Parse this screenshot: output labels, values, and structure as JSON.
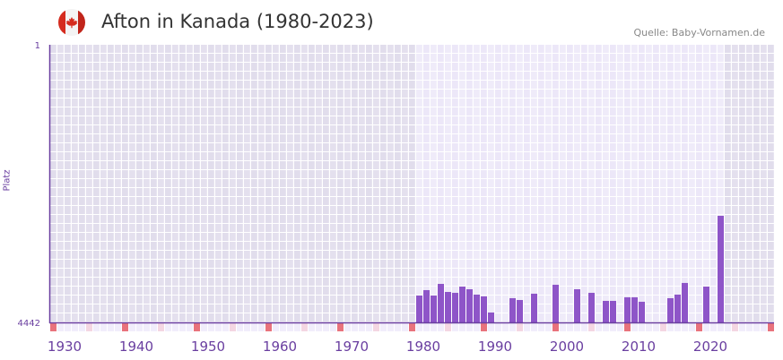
{
  "header": {
    "title": "Afton in Kanada (1980-2023)",
    "flag_icon": "canada-flag-icon",
    "source": "Quelle: Baby-Vornamen.de"
  },
  "colors": {
    "bar": "#8e55c8",
    "axis": "#6a3fa0",
    "decade_marker": "#e8727c",
    "half_decade_marker": "#f4d6e2"
  },
  "chart_data": {
    "type": "bar",
    "title": "Afton in Kanada (1980-2023)",
    "xlabel": "",
    "ylabel": "Platz",
    "y_inverted": true,
    "ylim": [
      1,
      4442
    ],
    "y_tick_labels": [
      "1",
      "4442"
    ],
    "xlim": [
      1930,
      2029
    ],
    "x_tick_labels": [
      "1930",
      "1940",
      "1950",
      "1960",
      "1970",
      "1980",
      "1990",
      "2000",
      "2010",
      "2020"
    ],
    "highlight_range": [
      1981,
      2023
    ],
    "grid": true,
    "categories": [
      1981,
      1982,
      1983,
      1984,
      1985,
      1986,
      1987,
      1988,
      1989,
      1990,
      1991,
      1994,
      1995,
      1997,
      2000,
      2003,
      2005,
      2007,
      2008,
      2010,
      2011,
      2012,
      2016,
      2017,
      2018,
      2021,
      2023
    ],
    "values": [
      4012,
      3926,
      4012,
      3826,
      3955,
      3969,
      3869,
      3912,
      3998,
      4026,
      4284,
      4055,
      4084,
      3983,
      3840,
      3912,
      3969,
      4098,
      4098,
      4041,
      4041,
      4112,
      4055,
      3998,
      3811,
      3869,
      2737
    ]
  }
}
